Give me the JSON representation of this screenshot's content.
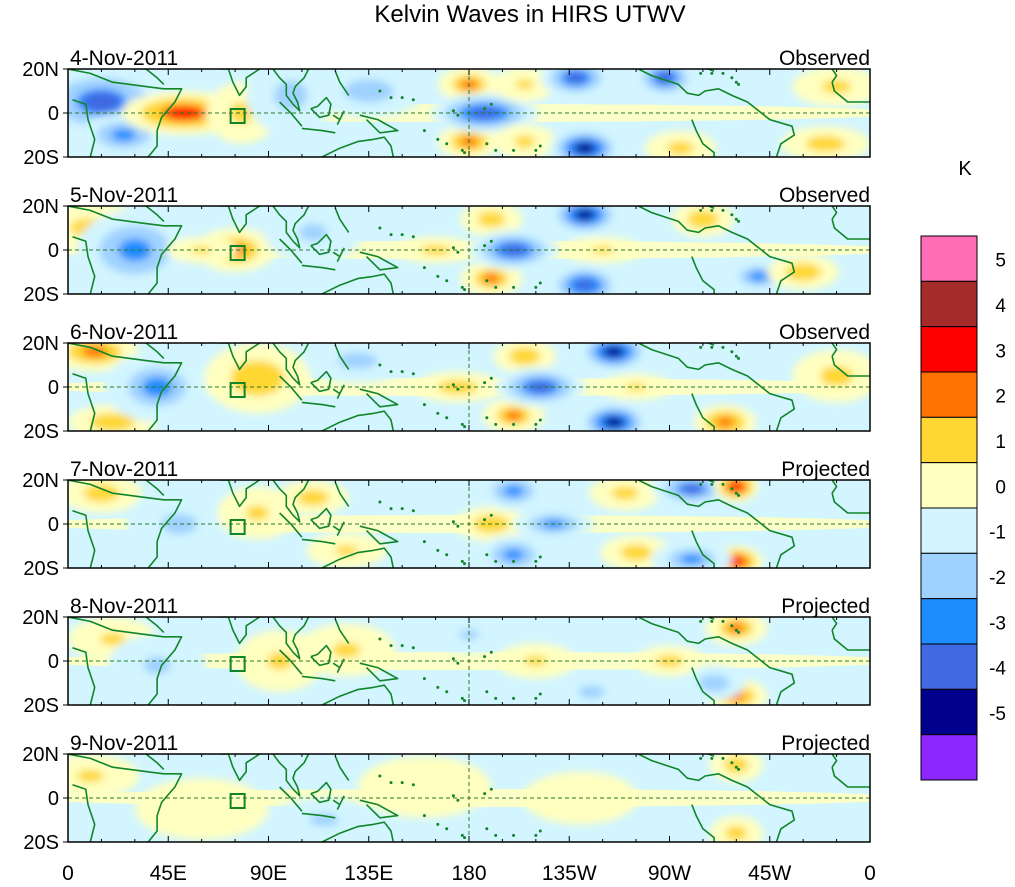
{
  "chart_data": {
    "type": "heatmap",
    "title": "Kelvin Waves in HIRS UTWV",
    "units": "K",
    "x_ticks": [
      "0",
      "45E",
      "90E",
      "135E",
      "180",
      "135W",
      "90W",
      "45W",
      "0"
    ],
    "y_ticks": [
      "20N",
      "0",
      "20S"
    ],
    "lat_range": [
      -20,
      20
    ],
    "lon_range": [
      0,
      360
    ],
    "colorbar": {
      "labels": [
        "5",
        "4",
        "3",
        "2",
        "1",
        "0",
        "-1",
        "-2",
        "-3",
        "-4",
        "-5"
      ],
      "levels": [
        5,
        4,
        3,
        2,
        1,
        0,
        -1,
        -2,
        -3,
        -4,
        -5
      ],
      "colors": [
        "#ff6eb4",
        "#a52a2a",
        "#ff0000",
        "#ff7300",
        "#ffd732",
        "#ffffc0",
        "#d2f5ff",
        "#a0d2ff",
        "#1e8cff",
        "#4169e1",
        "#00008c",
        "#8c28ff"
      ]
    },
    "panels": [
      {
        "date": "4-Nov-2011",
        "status": "Observed",
        "features": [
          {
            "lon": 15,
            "lat": 5,
            "wlon": 30,
            "wlat": 16,
            "value": -3.2
          },
          {
            "lon": 25,
            "lat": -10,
            "wlon": 20,
            "wlat": 10,
            "value": -2.5
          },
          {
            "lon": 52,
            "lat": 0,
            "wlon": 28,
            "wlat": 10,
            "value": 3.2
          },
          {
            "lon": 78,
            "lat": 0,
            "wlon": 16,
            "wlat": 14,
            "value": 1.5
          },
          {
            "lon": 100,
            "lat": 8,
            "wlon": 20,
            "wlat": 18,
            "value": -1.6
          },
          {
            "lon": 135,
            "lat": 10,
            "wlon": 25,
            "wlat": 12,
            "value": -1.8
          },
          {
            "lon": 180,
            "lat": 13,
            "wlon": 14,
            "wlat": 8,
            "value": 2.2
          },
          {
            "lon": 180,
            "lat": -13,
            "wlon": 14,
            "wlat": 8,
            "value": 2.4
          },
          {
            "lon": 187,
            "lat": 0,
            "wlon": 24,
            "wlat": 9,
            "value": -3.8
          },
          {
            "lon": 205,
            "lat": 13,
            "wlon": 14,
            "wlat": 8,
            "value": 1.2
          },
          {
            "lon": 205,
            "lat": -13,
            "wlon": 14,
            "wlat": 8,
            "value": 1.5
          },
          {
            "lon": 228,
            "lat": 16,
            "wlon": 16,
            "wlat": 9,
            "value": -3.5
          },
          {
            "lon": 232,
            "lat": -16,
            "wlon": 16,
            "wlat": 9,
            "value": -4.5
          },
          {
            "lon": 268,
            "lat": 16,
            "wlon": 14,
            "wlat": 9,
            "value": -3.5
          },
          {
            "lon": 275,
            "lat": -16,
            "wlon": 16,
            "wlat": 8,
            "value": 1.6
          },
          {
            "lon": 345,
            "lat": 12,
            "wlon": 20,
            "wlat": 9,
            "value": 1.5
          },
          {
            "lon": 340,
            "lat": -14,
            "wlon": 20,
            "wlat": 8,
            "value": 1.8
          }
        ]
      },
      {
        "date": "5-Nov-2011",
        "status": "Observed",
        "features": [
          {
            "lon": 10,
            "lat": 10,
            "wlon": 24,
            "wlat": 12,
            "value": 1.6
          },
          {
            "lon": 30,
            "lat": 0,
            "wlon": 26,
            "wlat": 18,
            "value": -2.6
          },
          {
            "lon": 75,
            "lat": 0,
            "wlon": 18,
            "wlat": 10,
            "value": 2.4
          },
          {
            "lon": 60,
            "lat": 0,
            "wlon": 16,
            "wlat": 6,
            "value": 1.2
          },
          {
            "lon": 110,
            "lat": 8,
            "wlon": 22,
            "wlat": 14,
            "value": -1.4
          },
          {
            "lon": 165,
            "lat": 0,
            "wlon": 18,
            "wlat": 6,
            "value": 1.6
          },
          {
            "lon": 190,
            "lat": 14,
            "wlon": 14,
            "wlat": 8,
            "value": 1.8
          },
          {
            "lon": 190,
            "lat": -13,
            "wlon": 14,
            "wlat": 8,
            "value": 2.2
          },
          {
            "lon": 200,
            "lat": 0,
            "wlon": 20,
            "wlat": 9,
            "value": -3.6
          },
          {
            "lon": 232,
            "lat": 16,
            "wlon": 16,
            "wlat": 9,
            "value": -4.2
          },
          {
            "lon": 232,
            "lat": -16,
            "wlon": 16,
            "wlat": 9,
            "value": -4.0
          },
          {
            "lon": 240,
            "lat": 0,
            "wlon": 18,
            "wlat": 6,
            "value": 1.1
          },
          {
            "lon": 285,
            "lat": 14,
            "wlon": 14,
            "wlat": 8,
            "value": 2.0
          },
          {
            "lon": 310,
            "lat": -12,
            "wlon": 16,
            "wlat": 8,
            "value": -2.2
          },
          {
            "lon": 330,
            "lat": -10,
            "wlon": 16,
            "wlat": 8,
            "value": 2.0
          }
        ]
      },
      {
        "date": "6-Nov-2011",
        "status": "Observed",
        "features": [
          {
            "lon": 12,
            "lat": 16,
            "wlon": 20,
            "wlat": 9,
            "value": 2.5
          },
          {
            "lon": 20,
            "lat": -16,
            "wlon": 20,
            "wlat": 8,
            "value": 2.0
          },
          {
            "lon": 40,
            "lat": 0,
            "wlon": 24,
            "wlat": 16,
            "value": -2.2
          },
          {
            "lon": 85,
            "lat": 4,
            "wlon": 24,
            "wlat": 16,
            "value": 2.0
          },
          {
            "lon": 130,
            "lat": 12,
            "wlon": 24,
            "wlat": 10,
            "value": -1.6
          },
          {
            "lon": 175,
            "lat": 0,
            "wlon": 20,
            "wlat": 7,
            "value": 1.8
          },
          {
            "lon": 205,
            "lat": 14,
            "wlon": 14,
            "wlat": 8,
            "value": 2.0
          },
          {
            "lon": 200,
            "lat": -13,
            "wlon": 14,
            "wlat": 8,
            "value": 2.2
          },
          {
            "lon": 212,
            "lat": 0,
            "wlon": 20,
            "wlat": 9,
            "value": -3.5
          },
          {
            "lon": 245,
            "lat": 16,
            "wlon": 16,
            "wlat": 9,
            "value": -4.3
          },
          {
            "lon": 245,
            "lat": -16,
            "wlon": 16,
            "wlat": 9,
            "value": -4.2
          },
          {
            "lon": 255,
            "lat": 0,
            "wlon": 16,
            "wlat": 6,
            "value": 1.4
          },
          {
            "lon": 295,
            "lat": -16,
            "wlon": 14,
            "wlat": 8,
            "value": 2.8
          },
          {
            "lon": 345,
            "lat": 5,
            "wlon": 20,
            "wlat": 12,
            "value": 1.6
          }
        ]
      },
      {
        "date": "7-Nov-2011",
        "status": "Projected",
        "features": [
          {
            "lon": 15,
            "lat": 14,
            "wlon": 18,
            "wlat": 9,
            "value": 1.8
          },
          {
            "lon": 50,
            "lat": 0,
            "wlon": 24,
            "wlat": 14,
            "value": -1.5
          },
          {
            "lon": 85,
            "lat": 5,
            "wlon": 18,
            "wlat": 12,
            "value": 1.3
          },
          {
            "lon": 110,
            "lat": 12,
            "wlon": 16,
            "wlat": 8,
            "value": 1.8
          },
          {
            "lon": 125,
            "lat": -12,
            "wlon": 18,
            "wlat": 8,
            "value": 1.4
          },
          {
            "lon": 190,
            "lat": 0,
            "wlon": 16,
            "wlat": 8,
            "value": 2.0
          },
          {
            "lon": 200,
            "lat": 15,
            "wlon": 16,
            "wlat": 9,
            "value": -2.4
          },
          {
            "lon": 200,
            "lat": -14,
            "wlon": 16,
            "wlat": 9,
            "value": -2.6
          },
          {
            "lon": 218,
            "lat": 0,
            "wlon": 18,
            "wlat": 7,
            "value": -2.6
          },
          {
            "lon": 250,
            "lat": 14,
            "wlon": 16,
            "wlat": 8,
            "value": 1.6
          },
          {
            "lon": 255,
            "lat": -13,
            "wlon": 16,
            "wlat": 8,
            "value": 1.8
          },
          {
            "lon": 280,
            "lat": 16,
            "wlon": 18,
            "wlat": 8,
            "value": -3.2
          },
          {
            "lon": 300,
            "lat": 17,
            "wlon": 10,
            "wlat": 7,
            "value": 3.8
          },
          {
            "lon": 300,
            "lat": -17,
            "wlon": 12,
            "wlat": 7,
            "value": 3.7
          },
          {
            "lon": 280,
            "lat": -16,
            "wlon": 18,
            "wlat": 8,
            "value": -2.4
          }
        ]
      },
      {
        "date": "8-Nov-2011",
        "status": "Projected",
        "features": [
          {
            "lon": 20,
            "lat": 10,
            "wlon": 20,
            "wlat": 10,
            "value": 1.3
          },
          {
            "lon": 40,
            "lat": -2,
            "wlon": 22,
            "wlat": 14,
            "value": -1.3
          },
          {
            "lon": 95,
            "lat": 0,
            "wlon": 20,
            "wlat": 14,
            "value": 1.1
          },
          {
            "lon": 125,
            "lat": 5,
            "wlon": 22,
            "wlat": 12,
            "value": 1.2
          },
          {
            "lon": 180,
            "lat": 12,
            "wlon": 16,
            "wlat": 8,
            "value": -1.4
          },
          {
            "lon": 210,
            "lat": 0,
            "wlon": 18,
            "wlat": 8,
            "value": 1.4
          },
          {
            "lon": 235,
            "lat": -14,
            "wlon": 16,
            "wlat": 8,
            "value": -1.6
          },
          {
            "lon": 270,
            "lat": 0,
            "wlon": 16,
            "wlat": 7,
            "value": 1.6
          },
          {
            "lon": 300,
            "lat": 15,
            "wlon": 14,
            "wlat": 8,
            "value": 2.2
          },
          {
            "lon": 300,
            "lat": -16,
            "wlon": 14,
            "wlat": 8,
            "value": 2.5
          },
          {
            "lon": 290,
            "lat": -10,
            "wlon": 14,
            "wlat": 8,
            "value": -2.0
          }
        ]
      },
      {
        "date": "9-Nov-2011",
        "status": "Projected",
        "features": [
          {
            "lon": 10,
            "lat": 10,
            "wlon": 22,
            "wlat": 10,
            "value": 1.1
          },
          {
            "lon": 60,
            "lat": -5,
            "wlon": 30,
            "wlat": 14,
            "value": 1.0
          },
          {
            "lon": 115,
            "lat": -10,
            "wlon": 24,
            "wlat": 10,
            "value": -1.2
          },
          {
            "lon": 160,
            "lat": 5,
            "wlon": 30,
            "wlat": 14,
            "value": 1.0
          },
          {
            "lon": 230,
            "lat": 0,
            "wlon": 26,
            "wlat": 12,
            "value": 0.8
          },
          {
            "lon": 300,
            "lat": 15,
            "wlon": 12,
            "wlat": 8,
            "value": 1.8
          },
          {
            "lon": 300,
            "lat": -16,
            "wlon": 12,
            "wlat": 8,
            "value": 1.7
          }
        ]
      }
    ]
  }
}
